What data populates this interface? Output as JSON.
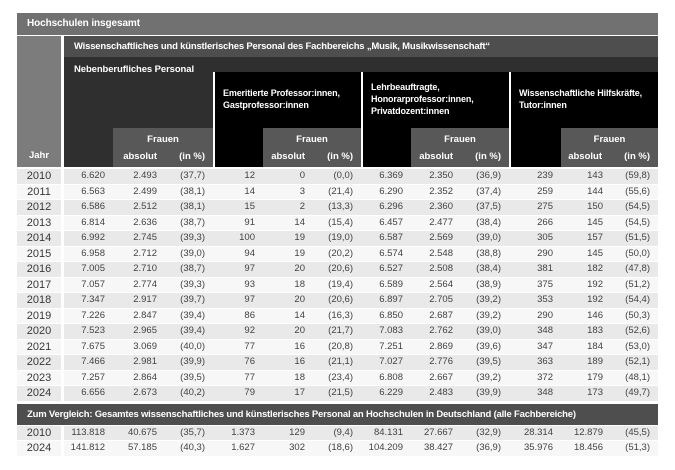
{
  "chart_data": {
    "type": "table",
    "title": "Hochschulen insgesamt",
    "subtitle": "Wissenschaftliches und künstlerisches Personal des Fachbereichs „Musik, Musikwissenschaft“",
    "section": "Nebenberufliches Personal",
    "jahr_label": "Jahr",
    "frauen_label": "Frauen",
    "absolut_label": "absolut",
    "percent_label": "(in %)",
    "groups": [
      {
        "name": "nebenberufliches-personal-gesamt",
        "lines": []
      },
      {
        "name": "emeritierte-gastprofessoren",
        "lines": [
          "Emeritierte Professor:innen,",
          "Gastprofessor:innen"
        ]
      },
      {
        "name": "lehrbeauftragte-honorarprofessoren-privatdozenten",
        "lines": [
          "Lehrbeauftragte,",
          "Honorarprofessor:innen,",
          "Privatdozent:innen"
        ]
      },
      {
        "name": "wissenschaftliche-hilfskraefte-tutoren",
        "lines": [
          "Wissenschaftliche Hilfskräfte,",
          "Tutor:innen"
        ]
      }
    ],
    "sub_columns_per_group": [
      "gesamt",
      "Frauen absolut",
      "Frauen (in %)"
    ],
    "rows": [
      {
        "year": "2010",
        "cells": [
          "6.620",
          "2.493",
          "(37,7)",
          "12",
          "0",
          "(0,0)",
          "6.369",
          "2.350",
          "(36,9)",
          "239",
          "143",
          "(59,8)"
        ]
      },
      {
        "year": "2011",
        "cells": [
          "6.563",
          "2.499",
          "(38,1)",
          "14",
          "3",
          "(21,4)",
          "6.290",
          "2.352",
          "(37,4)",
          "259",
          "144",
          "(55,6)"
        ]
      },
      {
        "year": "2012",
        "cells": [
          "6.586",
          "2.512",
          "(38,1)",
          "15",
          "2",
          "(13,3)",
          "6.296",
          "2.360",
          "(37,5)",
          "275",
          "150",
          "(54,5)"
        ]
      },
      {
        "year": "2013",
        "cells": [
          "6.814",
          "2.636",
          "(38,7)",
          "91",
          "14",
          "(15,4)",
          "6.457",
          "2.477",
          "(38,4)",
          "266",
          "145",
          "(54,5)"
        ]
      },
      {
        "year": "2014",
        "cells": [
          "6.992",
          "2.745",
          "(39,3)",
          "100",
          "19",
          "(19,0)",
          "6.587",
          "2.569",
          "(39,0)",
          "305",
          "157",
          "(51,5)"
        ]
      },
      {
        "year": "2015",
        "cells": [
          "6.958",
          "2.712",
          "(39,0)",
          "94",
          "19",
          "(20,2)",
          "6.574",
          "2.548",
          "(38,8)",
          "290",
          "145",
          "(50,0)"
        ]
      },
      {
        "year": "2016",
        "cells": [
          "7.005",
          "2.710",
          "(38,7)",
          "97",
          "20",
          "(20,6)",
          "6.527",
          "2.508",
          "(38,4)",
          "381",
          "182",
          "(47,8)"
        ]
      },
      {
        "year": "2017",
        "cells": [
          "7.057",
          "2.774",
          "(39,3)",
          "93",
          "18",
          "(19,4)",
          "6.589",
          "2.564",
          "(38,9)",
          "375",
          "192",
          "(51,2)"
        ]
      },
      {
        "year": "2018",
        "cells": [
          "7.347",
          "2.917",
          "(39,7)",
          "97",
          "20",
          "(20,6)",
          "6.897",
          "2.705",
          "(39,2)",
          "353",
          "192",
          "(54,4)"
        ]
      },
      {
        "year": "2019",
        "cells": [
          "7.226",
          "2.847",
          "(39,4)",
          "86",
          "14",
          "(16,3)",
          "6.850",
          "2.687",
          "(39,2)",
          "290",
          "146",
          "(50,3)"
        ]
      },
      {
        "year": "2020",
        "cells": [
          "7.523",
          "2.965",
          "(39,4)",
          "92",
          "20",
          "(21,7)",
          "7.083",
          "2.762",
          "(39,0)",
          "348",
          "183",
          "(52,6)"
        ]
      },
      {
        "year": "2021",
        "cells": [
          "7.675",
          "3.069",
          "(40,0)",
          "77",
          "16",
          "(20,8)",
          "7.251",
          "2.869",
          "(39,6)",
          "347",
          "184",
          "(53,0)"
        ]
      },
      {
        "year": "2022",
        "cells": [
          "7.466",
          "2.981",
          "(39,9)",
          "76",
          "16",
          "(21,1)",
          "7.027",
          "2.776",
          "(39,5)",
          "363",
          "189",
          "(52,1)"
        ]
      },
      {
        "year": "2023",
        "cells": [
          "7.257",
          "2.864",
          "(39,5)",
          "77",
          "18",
          "(23,4)",
          "6.808",
          "2.667",
          "(39,2)",
          "372",
          "179",
          "(48,1)"
        ]
      },
      {
        "year": "2024",
        "cells": [
          "6.656",
          "2.673",
          "(40,2)",
          "79",
          "17",
          "(21,5)",
          "6.229",
          "2.483",
          "(39,9)",
          "348",
          "173",
          "(49,7)"
        ]
      }
    ],
    "comparison": {
      "title": "Zum Vergleich: Gesamtes wissenschaftliches und künstlerisches Personal an Hochschulen in Deutschland (alle Fachbereiche)",
      "rows": [
        {
          "year": "2010",
          "cells": [
            "113.818",
            "40.675",
            "(35,7)",
            "1.373",
            "129",
            "(9,4)",
            "84.131",
            "27.667",
            "(32,9)",
            "28.314",
            "12.879",
            "(45,5)"
          ]
        },
        {
          "year": "2024",
          "cells": [
            "141.812",
            "57.185",
            "(40,3)",
            "1.627",
            "302",
            "(18,6)",
            "104.209",
            "38.427",
            "(36,9)",
            "35.976",
            "18.456",
            "(51,3)"
          ]
        }
      ]
    },
    "colors": {
      "level1_bar": "#717171",
      "level2_bar": "#4e4e4e",
      "level3_band": "#2f2f2f",
      "group_box": "#000000",
      "frauen_box": "#585858",
      "row_even": "#e9e9e9",
      "row_odd": "#f7f7f7"
    }
  }
}
